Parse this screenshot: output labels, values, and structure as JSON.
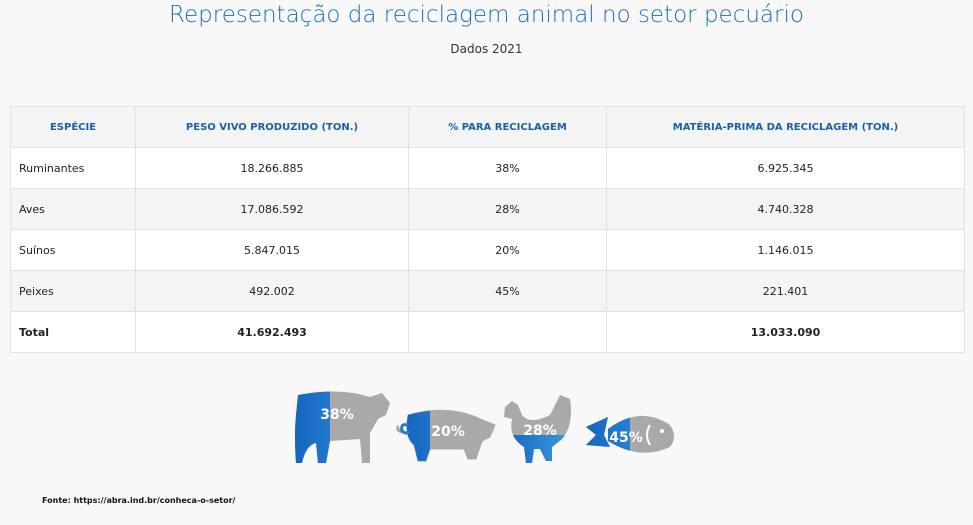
{
  "header": {
    "title": "Representação da reciclagem animal no setor pecuário",
    "subtitle": "Dados 2021"
  },
  "table": {
    "columns": [
      "ESPÉCIE",
      "PESO VIVO PRODUZIDO (TON.)",
      "% PARA RECICLAGEM",
      "MATÉRIA-PRIMA DA RECICLAGEM (TON.)"
    ],
    "rows": [
      [
        "Ruminantes",
        "18.266.885",
        "38%",
        "6.925.345"
      ],
      [
        "Aves",
        "17.086.592",
        "28%",
        "4.740.328"
      ],
      [
        "Suínos",
        "5.847.015",
        "20%",
        "1.146.015"
      ],
      [
        "Peixes",
        "492.002",
        "45%",
        "221.401"
      ]
    ],
    "total": {
      "label": "Total",
      "peso": "41.692.493",
      "materia": "13.033.090"
    }
  },
  "icons": [
    "38%",
    "20%",
    "28%",
    "45%"
  ],
  "source": "Fonte: https://abra.ind.br/conheca-o-setor/"
}
